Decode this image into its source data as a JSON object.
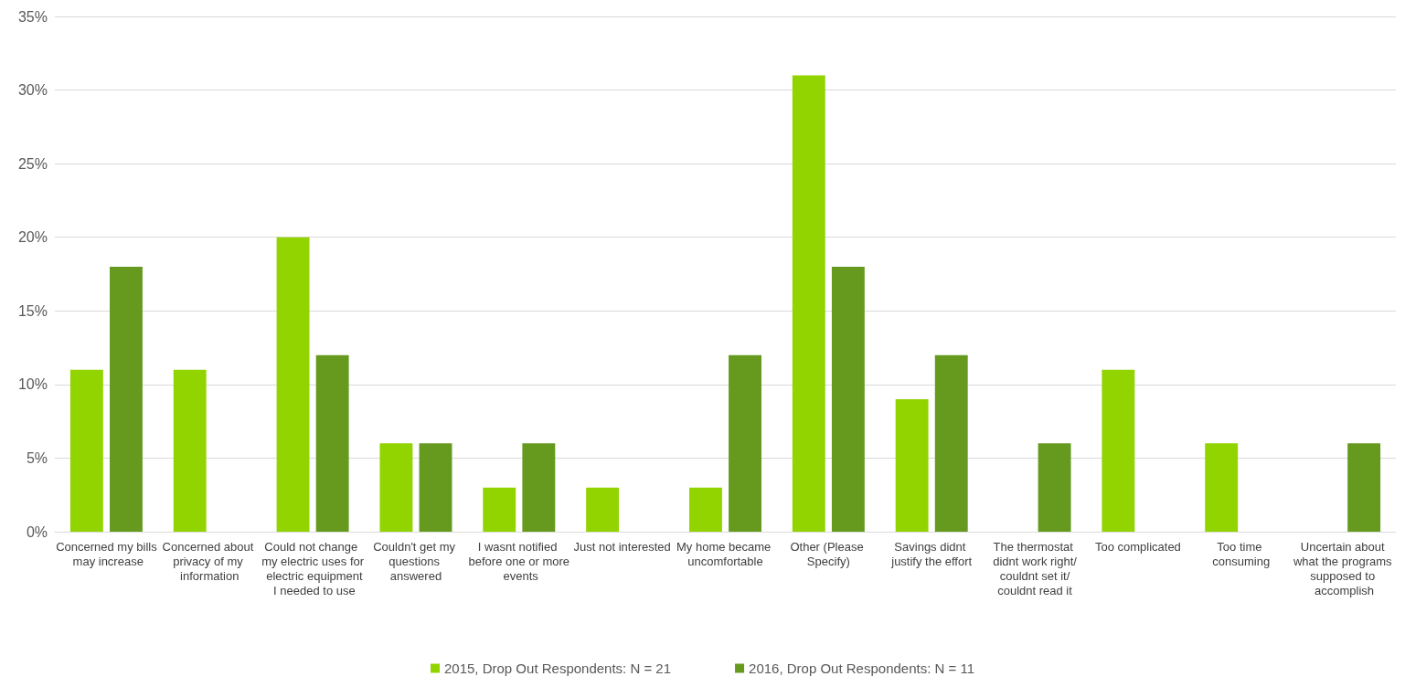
{
  "chart_data": {
    "type": "bar",
    "categories": [
      "Concerned my bills may increase",
      "Concerned about privacy of my information",
      "Could not change my electric uses for electric equipment I needed to use",
      "Couldn't get my questions answered",
      "I wasnt notified before one or more events",
      "Just not interested",
      "My home became uncomfortable",
      "Other (Please Specify)",
      "Savings didnt justify the effort",
      "The thermostat didnt work right/couldnt set it/couldnt read it",
      "Too complicated",
      "Too time consuming",
      "Uncertain about what the programs supposed to accomplish"
    ],
    "series": [
      {
        "name": "2015, Drop Out Respondents: N = 21",
        "color": "#92d400",
        "values": [
          11,
          11,
          20,
          6,
          3,
          3,
          3,
          31,
          9,
          0,
          11,
          6,
          0
        ]
      },
      {
        "name": "2016, Drop Out Respondents: N = 11",
        "color": "#659a1f",
        "values": [
          18,
          0,
          12,
          6,
          6,
          0,
          12,
          18,
          12,
          6,
          0,
          0,
          6
        ]
      }
    ],
    "ylim": [
      0,
      35
    ],
    "yticks": [
      {
        "value": 0,
        "label": "0%"
      },
      {
        "value": 5,
        "label": "5%"
      },
      {
        "value": 10,
        "label": "10%"
      },
      {
        "value": 15,
        "label": "15%"
      },
      {
        "value": 20,
        "label": "20%"
      },
      {
        "value": 25,
        "label": "25%"
      },
      {
        "value": 30,
        "label": "30%"
      },
      {
        "value": 35,
        "label": "35%"
      }
    ],
    "grid": "y",
    "legend": "bottom"
  }
}
